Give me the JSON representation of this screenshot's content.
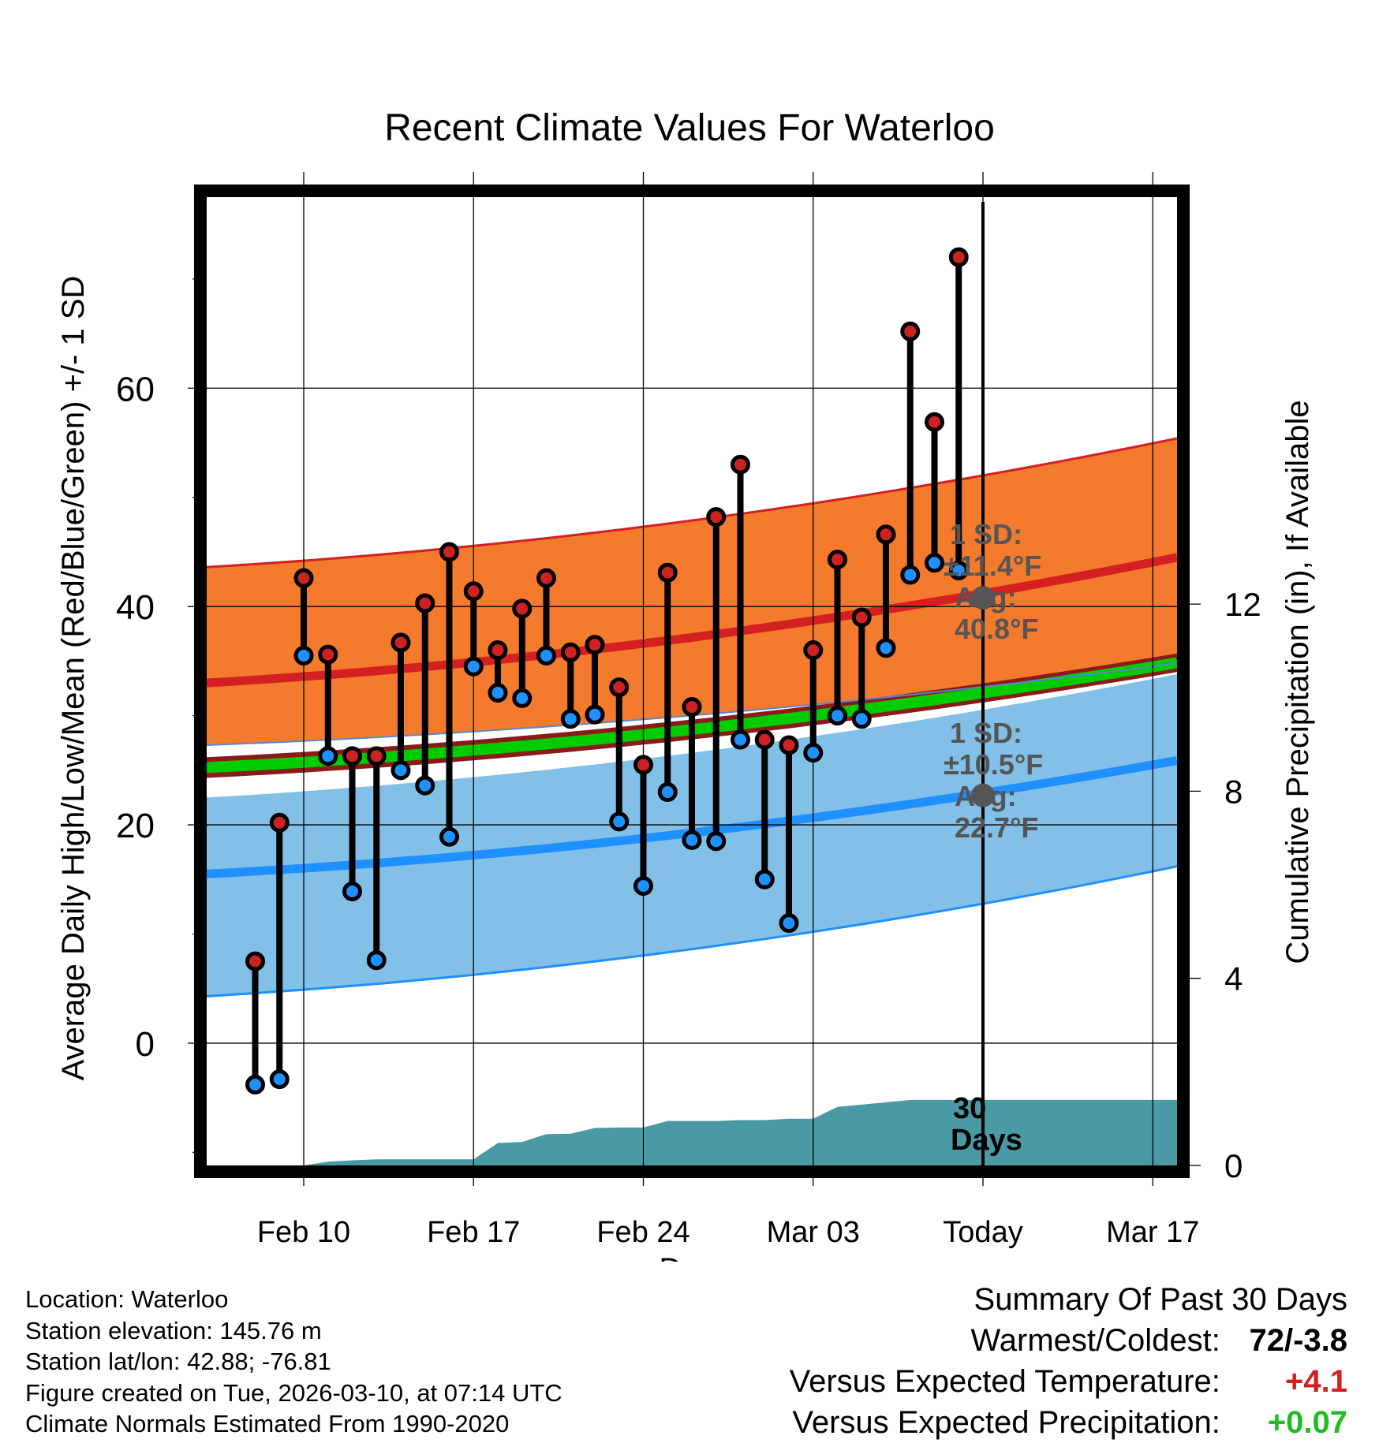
{
  "chart_data": {
    "type": "line",
    "title": "Recent Climate Values For Waterloo",
    "xlabel": "Day",
    "ylabel": "Average Daily High/Low/Mean (Red/Blue/Green) +/- 1 SD",
    "y2label": "Cumulative Precipitation (in), If Available",
    "ylim": [
      -11.2,
      77.5
    ],
    "y2lim": [
      0,
      20.7
    ],
    "xlim": [
      -34,
      6
    ],
    "x_ticks": [
      {
        "day": -30,
        "label": "Feb 10"
      },
      {
        "day": -23,
        "label": "Feb 17"
      },
      {
        "day": -16,
        "label": "Feb 24"
      },
      {
        "day": -9,
        "label": "Mar 03"
      },
      {
        "day": -2,
        "label": "Today"
      },
      {
        "day": 5,
        "label": "Mar 17"
      }
    ],
    "y_ticks": [
      0,
      20,
      40,
      60
    ],
    "y2_ticks": [
      0,
      4,
      8,
      12
    ],
    "today_day": -2,
    "normals": {
      "high_mean": [
        33.0,
        44.5
      ],
      "high_sd_upper": [
        43.6,
        55.4
      ],
      "high_sd_lower": [
        27.3,
        34.8
      ],
      "low_mean": [
        15.5,
        25.9
      ],
      "low_sd_upper": [
        22.5,
        33.8
      ],
      "low_sd_lower": [
        4.3,
        16.2
      ],
      "mean_band_upper": [
        26.2,
        35.7
      ],
      "mean_band_lower": [
        24.3,
        34.0
      ]
    },
    "daily_high": [
      7.5,
      20.2,
      42.6,
      35.6,
      26.3,
      26.3,
      36.7,
      40.3,
      45.0,
      41.4,
      36.0,
      39.8,
      42.6,
      35.8,
      36.5,
      32.6,
      25.5,
      43.1,
      30.8,
      48.2,
      53.0,
      27.8,
      27.3,
      36.0,
      44.3,
      39.0,
      46.6,
      65.2,
      56.9,
      72.0
    ],
    "daily_low": [
      -3.8,
      -3.3,
      35.5,
      26.3,
      13.9,
      7.6,
      25.0,
      23.6,
      18.9,
      34.5,
      32.1,
      31.6,
      35.5,
      29.7,
      30.1,
      20.3,
      14.4,
      23.0,
      18.6,
      18.5,
      27.8,
      15.0,
      11.0,
      26.6,
      30.0,
      29.7,
      36.2,
      42.9,
      44.0,
      43.3
    ],
    "precip_cumulative": {
      "x": [
        -30.0,
        -29.0,
        -28.0,
        -27.0,
        -26.0,
        -25.0,
        -24.0,
        -23.0,
        -22.0,
        -21.0,
        -20.0,
        -19.0,
        -18.0,
        -17.0,
        -16.0,
        -15.0,
        -14.0,
        -13.0,
        -12.0,
        -11.0,
        -10.0,
        -9.0,
        -8.0,
        -7.0,
        -6.0,
        -5.0,
        -4.0,
        -3.0,
        -2.0,
        6.0
      ],
      "y": [
        0.0,
        0.08,
        0.11,
        0.13,
        0.13,
        0.13,
        0.13,
        0.13,
        0.48,
        0.5,
        0.67,
        0.68,
        0.8,
        0.81,
        0.81,
        0.95,
        0.95,
        0.95,
        0.97,
        0.97,
        1.0,
        1.0,
        1.25,
        1.3,
        1.35,
        1.4,
        1.4,
        1.4,
        1.4,
        1.4
      ]
    },
    "annotations": {
      "high_sd": "1 SD:",
      "high_pm": "±11.4°F",
      "high_avg_label": "Avg:",
      "high_avg": "40.8°F",
      "high_avg_value": 40.8,
      "low_sd": "1 SD:",
      "low_pm": "±10.5°F",
      "low_avg_label": "Avg:",
      "low_avg": "22.7°F",
      "low_avg_value": 22.7,
      "days_1": "30",
      "days_2": "Days"
    },
    "colors": {
      "high_band": "#f47a2e",
      "high_line": "#d42020",
      "low_band": "#82c0e8",
      "low_line": "#1e90ff",
      "mean_band": "#8b1a1a",
      "mean_line": "#00cc00",
      "precip": "#4a9aa5",
      "high_dot": "#cc2222",
      "low_dot": "#1e90ff",
      "annotation": "#555555"
    }
  },
  "info": {
    "location": "Location: Waterloo",
    "elevation": "Station elevation: 145.76 m",
    "latlon": "Station lat/lon: 42.88; -76.81",
    "created": "Figure created on Tue, 2026-03-10, at 07:14 UTC",
    "normals": "Climate Normals Estimated From 1990-2020"
  },
  "summary": {
    "title": "Summary Of Past 30 Days",
    "warmest_label": "Warmest/Coldest:",
    "warmest_value": "72/-3.8",
    "temp_label": "Versus Expected Temperature:",
    "temp_value": "+4.1",
    "temp_color": "#d42020",
    "precip_label": "Versus Expected Precipitation:",
    "precip_value": "+0.07",
    "precip_color": "#22bb22"
  }
}
